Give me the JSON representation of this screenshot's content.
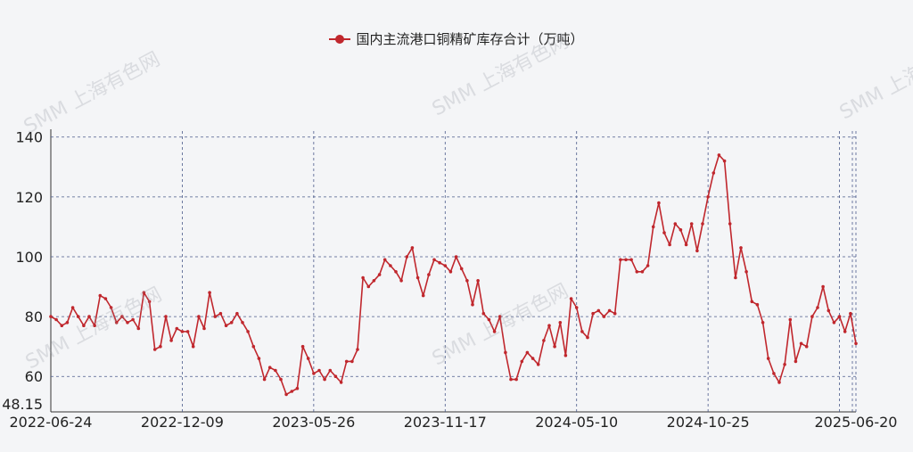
{
  "watermark": "SMM 上海有色网",
  "legend": {
    "label": "国内主流港口铜精矿库存合计（万吨）",
    "color": "#c0272d"
  },
  "chart_data": {
    "type": "line",
    "series": [
      {
        "name": "国内主流港口铜精矿库存合计（万吨）",
        "color": "#c0272d",
        "values": [
          80,
          79,
          77,
          78,
          83,
          80,
          77,
          80,
          77,
          87,
          86,
          83,
          78,
          80,
          78,
          79,
          76,
          88,
          85,
          69,
          70,
          80,
          72,
          76,
          75,
          75,
          70,
          80,
          76,
          88,
          80,
          81,
          77,
          78,
          81,
          78,
          75,
          70,
          66,
          59,
          63,
          62,
          59,
          54,
          55,
          56,
          70,
          66,
          61,
          62,
          59,
          62,
          60,
          58,
          65,
          65,
          69,
          93,
          90,
          92,
          94,
          99,
          97,
          95,
          92,
          100,
          103,
          93,
          87,
          94,
          99,
          98,
          97,
          95,
          100,
          96,
          92,
          84,
          92,
          81,
          79,
          75,
          80,
          68,
          59,
          59,
          65,
          68,
          66,
          64,
          72,
          77,
          70,
          78,
          67,
          86,
          83,
          75,
          73,
          81,
          82,
          80,
          82,
          81,
          99,
          99,
          99,
          95,
          95,
          97,
          110,
          118,
          108,
          104,
          111,
          109,
          104,
          111,
          102,
          111,
          120,
          128,
          134,
          132,
          111,
          93,
          103,
          95,
          85,
          84,
          78,
          66,
          61,
          58,
          64,
          79,
          65,
          71,
          70,
          80,
          83,
          90,
          82,
          78,
          80,
          75,
          81,
          71
        ]
      }
    ],
    "x_tick_labels": [
      "2022-06-24",
      "2022-12-09",
      "2023-05-26",
      "2023-11-17",
      "2024-05-10",
      "2024-10-25",
      "2025-06-20"
    ],
    "y_tick_labels": [
      "48.15",
      "60",
      "80",
      "100",
      "120",
      "140"
    ],
    "ylim": [
      48.15,
      142
    ],
    "grid": true
  }
}
